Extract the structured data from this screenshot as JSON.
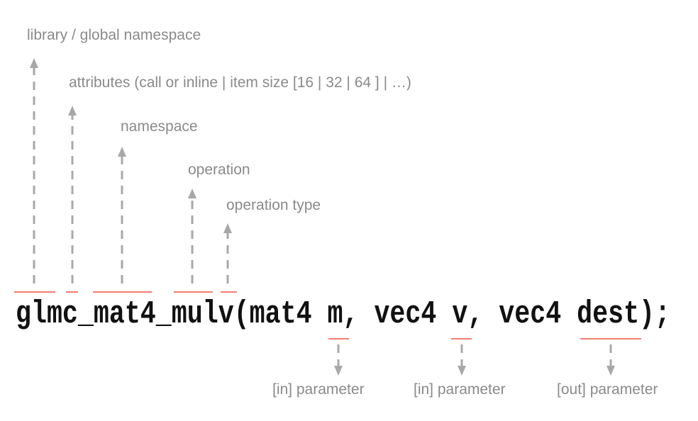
{
  "code": "glmc_mat4_mulv(mat4 m, vec4 v, vec4 dest);",
  "labels_above": [
    "library / global namespace",
    "attributes (call or inline | item size [16 | 32 | 64 ] | …)",
    "namespace",
    "operation",
    "operation type"
  ],
  "labels_below": [
    "[in] parameter",
    "[in] parameter",
    "[out] parameter"
  ],
  "colors": {
    "underline": "#f08070",
    "arrow": "#a8a8a8",
    "label": "#8a8a8a",
    "code": "#111111"
  }
}
